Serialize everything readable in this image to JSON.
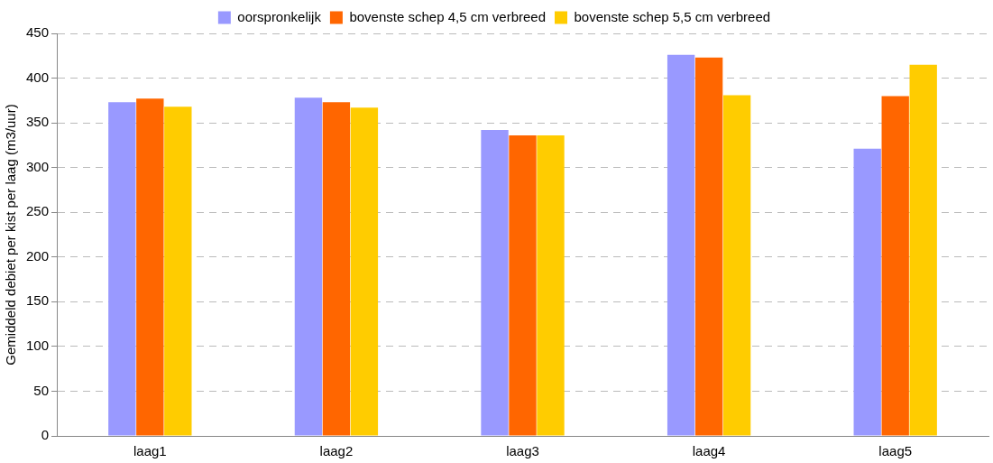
{
  "chart_data": {
    "type": "bar",
    "ylabel": "Gemiddeld debiet per kist per laag (m3/uur)",
    "categories": [
      "laag1",
      "laag2",
      "laag3",
      "laag4",
      "laag5"
    ],
    "series": [
      {
        "name": "oorspronkelijk",
        "color": "#9999ff",
        "values": [
          373,
          378,
          342,
          426,
          321
        ]
      },
      {
        "name": "bovenste schep 4,5 cm verbreed",
        "color": "#ff6600",
        "values": [
          377,
          373,
          336,
          423,
          380
        ]
      },
      {
        "name": "bovenste schep 5,5 cm verbreed",
        "color": "#ffcc00",
        "values": [
          368,
          367,
          336,
          381,
          415
        ]
      }
    ],
    "ylim": [
      0,
      450
    ],
    "yticks": [
      0,
      50,
      100,
      150,
      200,
      250,
      300,
      350,
      400,
      450
    ],
    "grid": "y",
    "legend": "top"
  }
}
